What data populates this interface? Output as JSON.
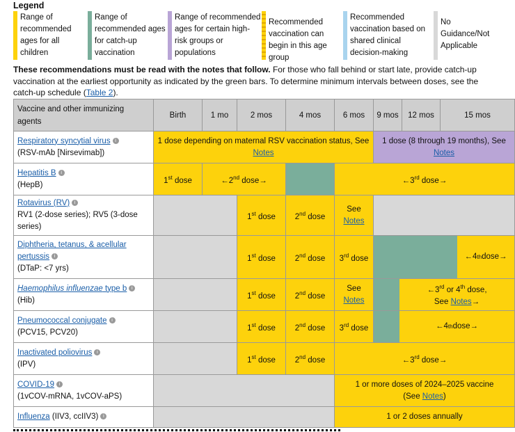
{
  "legend": {
    "title": "Legend",
    "items": [
      {
        "text": "Range of recommended ages for all children",
        "color": "#fdd20c"
      },
      {
        "text": "Range of recommended ages for catch-up vaccination",
        "color": "#7aae9b"
      },
      {
        "text": "Range of recommended ages for certain high-risk groups or populations",
        "color": "#b9a5d6"
      },
      {
        "text": "Recommended vaccination can begin in this age group",
        "color": "#fdd20c"
      },
      {
        "text": "Recommended vaccination based on shared clinical decision-making",
        "color": "#a9d4ee"
      },
      {
        "text": "No Guidance/Not Applicable",
        "color": "#d8d8d8"
      }
    ]
  },
  "note": {
    "bold": "These recommendations must be read with the notes that follow.",
    "rest": " For those who fall behind or start late, provide catch-up vaccination at the earliest opportunity as indicated by the green bars. To determine minimum intervals between doses, see the catch-up schedule (",
    "link": "Table 2",
    "end": ")."
  },
  "table": {
    "header": {
      "vaccine": "Vaccine and other immunizing agents",
      "ages": [
        "Birth",
        "1 mo",
        "2 mos",
        "4 mos",
        "6 mos",
        "9 mos",
        "12 mos",
        "15 mos"
      ]
    },
    "rows": {
      "rsv": {
        "name": "Respiratory syncytial virus",
        "sub": "(RSV-mAb [Nirsevimab])",
        "cell1": "1 dose depending on maternal RSV vaccination status, See ",
        "cell1_link": "Notes",
        "cell2": "1 dose (8 through 19 months), See ",
        "cell2_link": "Notes"
      },
      "hepb": {
        "name": "Hepatitis B",
        "sub": "(HepB)",
        "d1": "1",
        "d1s": "st",
        "d1t": " dose",
        "d2a": "←2",
        "d2s": "nd",
        "d2b": " dose→",
        "d3a": "←3",
        "d3s": "rd",
        "d3b": " dose→"
      },
      "rv": {
        "name": "Rotavirus (RV)",
        "sub": "RV1 (2-dose series); RV5 (3-dose series)",
        "d1": "1",
        "d1s": "st",
        "d1t": " dose",
        "d2": "2",
        "d2s": "nd",
        "d2t": " dose",
        "see": "See",
        "notes": "Notes"
      },
      "dtap": {
        "name": "Diphtheria, tetanus, & acellular pertussis",
        "sub": "(DTaP: <7 yrs)",
        "d1": "1",
        "d1s": "st",
        "d1t": " dose",
        "d2": "2",
        "d2s": "nd",
        "d2t": " dose",
        "d3": "3",
        "d3s": "rd",
        "d3t": " dose",
        "d4a": "←4",
        "d4s": "th",
        "d4b": " dose→"
      },
      "hib": {
        "name": "Haemophilus influenzae",
        "name2": " type b",
        "sub": "(Hib)",
        "d1": "1",
        "d1s": "st",
        "d1t": " dose",
        "d2": "2",
        "d2s": "nd",
        "d2t": " dose",
        "see": "See",
        "notes": "Notes",
        "d34a": "←3",
        "d34s1": "rd",
        "d34b": " or 4",
        "d34s2": "th",
        "d34c": " dose,",
        "d34d": "See ",
        "d34link": "Notes",
        "d34e": "→"
      },
      "pcv": {
        "name": "Pneumococcal conjugate",
        "sub": "(PCV15, PCV20)",
        "d1": "1",
        "d1s": "st",
        "d1t": " dose",
        "d2": "2",
        "d2s": "nd",
        "d2t": " dose",
        "d3": "3",
        "d3s": "rd",
        "d3t": " dose",
        "d4a": "←4",
        "d4s": "th",
        "d4b": " dose→"
      },
      "ipv": {
        "name": "Inactivated poliovirus",
        "sub": "(IPV)",
        "d1": "1",
        "d1s": "st",
        "d1t": " dose",
        "d2": "2",
        "d2s": "nd",
        "d2t": " dose",
        "d3a": "←3",
        "d3s": "rd",
        "d3b": " dose→"
      },
      "covid": {
        "name": "COVID-19",
        "sub": "(1vCOV-mRNA, 1vCOV-aPS)",
        "cell": "1 or more doses of 2024–2025 vaccine",
        "cell2": "(See ",
        "cell_link": "Notes",
        "cell3": ")"
      },
      "flu": {
        "name": "Influenza",
        "sub": " (IIV3, ccIIV3)",
        "cell": "1 or 2 doses annually"
      }
    }
  }
}
